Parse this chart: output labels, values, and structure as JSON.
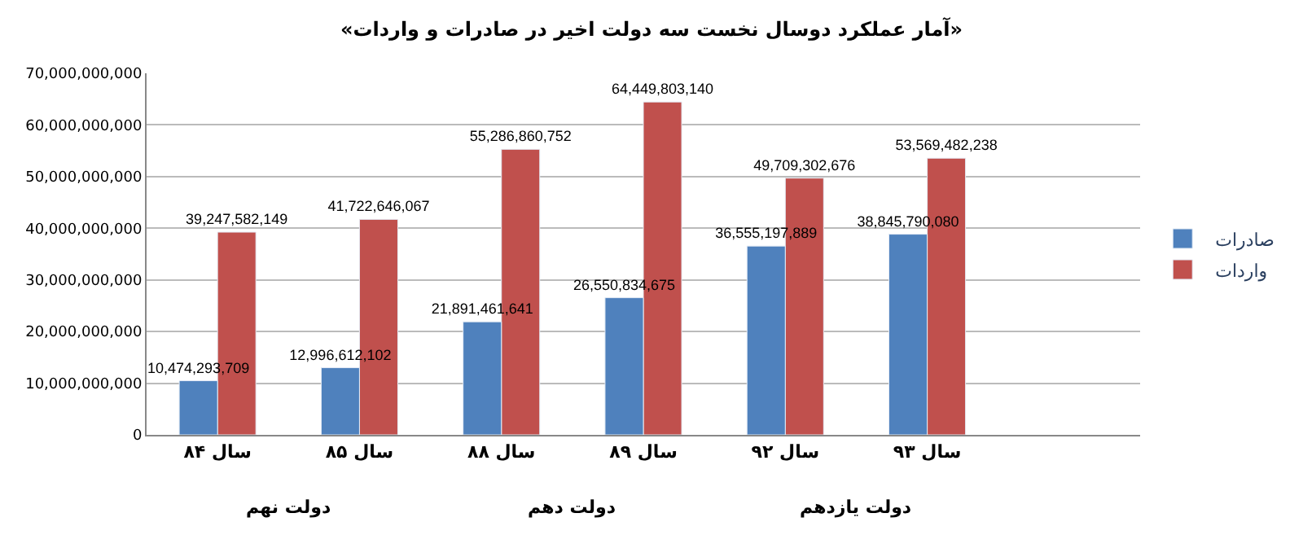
{
  "chart_data": {
    "type": "bar",
    "title": "«آمار عملکرد دوسال نخست سه دولت اخیر در صادرات و واردات»",
    "categories": [
      "سال ۸۴",
      "سال ۸۵",
      "سال ۸۸",
      "سال ۸۹",
      "سال ۹۲",
      "سال ۹۳",
      null
    ],
    "series": [
      {
        "name": "صادرات",
        "color": "#4f81bd",
        "values": [
          10474293709,
          12996612102,
          21891461641,
          26550834675,
          36555197889,
          38845790080,
          null
        ],
        "value_labels": [
          "10,474,293,709",
          "12,996,612,102",
          "21,891,461,641",
          "26,550,834,675",
          "36,555,197,889",
          "38,845,790,080",
          null
        ]
      },
      {
        "name": "واردات",
        "color": "#c0504d",
        "values": [
          39247582149,
          41722646067,
          55286860752,
          64449803140,
          49709302676,
          53569482238,
          null
        ],
        "value_labels": [
          "39,247,582,149",
          "41,722,646,067",
          "55,286,860,752",
          "64,449,803,140",
          "49,709,302,676",
          "53,569,482,238",
          null
        ]
      }
    ],
    "annotations": [
      "دولت نهم",
      "دولت دهم",
      "دولت یازدهم"
    ],
    "ylim": [
      0,
      70000000000
    ],
    "yticks": [
      0,
      {
        "value": 10000000000,
        "label": "10,000,000,000"
      },
      {
        "value": 20000000000,
        "label": "20,000,000,000"
      },
      {
        "value": 30000000000,
        "label": "30,000,000,000"
      },
      {
        "value": 40000000000,
        "label": "40,000,000,000"
      },
      {
        "value": 50000000000,
        "label": "50,000,000,000"
      },
      {
        "value": 60000000000,
        "label": "60,000,000,000"
      },
      {
        "value": 70000000000,
        "label": "70,000,000,000"
      }
    ],
    "grid": "y",
    "legend": "right"
  }
}
